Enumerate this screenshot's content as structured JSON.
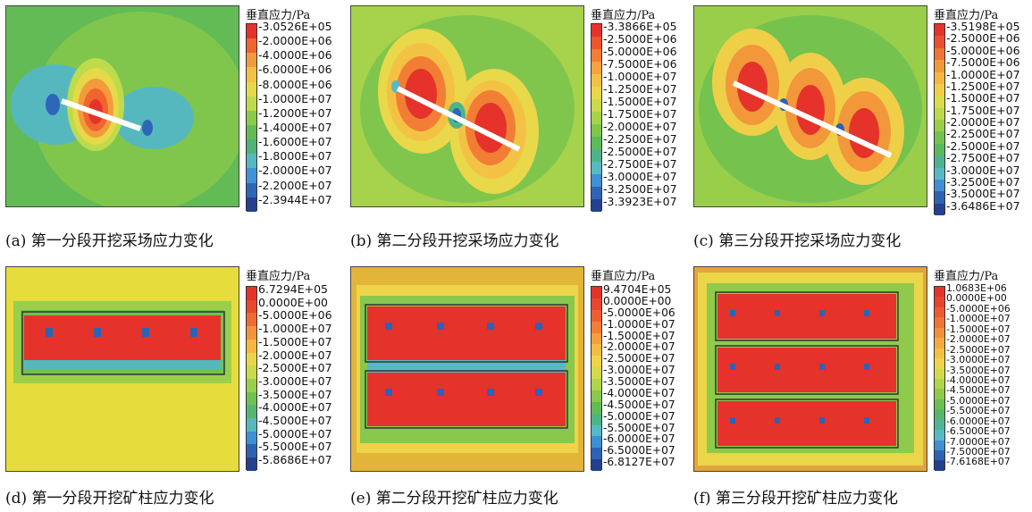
{
  "legend_title": "垂直应力/Pa",
  "panels": [
    {
      "caption": "(a) 第一分段开挖采场应力变化",
      "labels": [
        "-3.0526E+05",
        "-2.0000E+06",
        "-4.0000E+06",
        "-6.0000E+06",
        "-8.0000E+06",
        "-1.0000E+07",
        "-1.2000E+07",
        "-1.4000E+07",
        "-1.6000E+07",
        "-1.8000E+07",
        "-2.0000E+07",
        "-2.2000E+07",
        "-2.3944E+07"
      ],
      "colors": [
        "#e5322b",
        "#f0642f",
        "#f39a3c",
        "#f3c245",
        "#e5d94a",
        "#bddb4b",
        "#8ccb4a",
        "#63bb55",
        "#4fb37a",
        "#56b8bf",
        "#3f93d6",
        "#2e66b8",
        "#24408f"
      ]
    },
    {
      "caption": "(b) 第二分段开挖采场应力变化",
      "labels": [
        "-3.3866E+05",
        "-2.5000E+06",
        "-5.0000E+06",
        "-7.5000E+06",
        "-1.0000E+07",
        "-1.2500E+07",
        "-1.5000E+07",
        "-1.7500E+07",
        "-2.0000E+07",
        "-2.2500E+07",
        "-2.5000E+07",
        "-2.7500E+07",
        "-3.0000E+07",
        "-3.2500E+07",
        "-3.3923E+07"
      ],
      "colors": [
        "#e5322b",
        "#ee5530",
        "#f27e36",
        "#f3a43d",
        "#f3c245",
        "#e9d84a",
        "#cbdb4b",
        "#a7d24b",
        "#80c64d",
        "#5fba59",
        "#4eb38b",
        "#58b9c4",
        "#3f90d4",
        "#2e63b5",
        "#24408f"
      ]
    },
    {
      "caption": "(c) 第三分段开挖采场应力变化",
      "labels": [
        "-3.5198E+05",
        "-2.5000E+06",
        "-5.0000E+06",
        "-7.5000E+06",
        "-1.0000E+07",
        "-1.2500E+07",
        "-1.5000E+07",
        "-1.7500E+07",
        "-2.0000E+07",
        "-2.2500E+07",
        "-2.5000E+07",
        "-2.7500E+07",
        "-3.0000E+07",
        "-3.2500E+07",
        "-3.5000E+07",
        "-3.6486E+07"
      ],
      "colors": [
        "#e5322b",
        "#ec4f2f",
        "#f07434",
        "#f3973b",
        "#f3b742",
        "#f0cf48",
        "#dbdb4b",
        "#bcd84b",
        "#99ce4b",
        "#75c24f",
        "#5ab95f",
        "#4fb391",
        "#58b9c6",
        "#3f8fd3",
        "#2e62b4",
        "#24408f"
      ]
    },
    {
      "caption": "(d) 第一分段开挖矿柱应力变化",
      "labels": [
        "6.7294E+05",
        "0.0000E+00",
        "-5.0000E+06",
        "-1.0000E+07",
        "-1.5000E+07",
        "-2.0000E+07",
        "-2.5000E+07",
        "-3.0000E+07",
        "-3.5000E+07",
        "-4.0000E+07",
        "-4.5000E+07",
        "-5.0000E+07",
        "-5.5000E+07",
        "-5.8686E+07"
      ],
      "colors": [
        "#e5322b",
        "#ea472e",
        "#f06a33",
        "#f3943b",
        "#f3b742",
        "#ecd448",
        "#c9db4b",
        "#9bcf4b",
        "#6fc150",
        "#54b774",
        "#56b8bf",
        "#3f90d4",
        "#2e62b4",
        "#24408f"
      ]
    },
    {
      "caption": "(e) 第二分段开挖矿柱应力变化",
      "labels": [
        "9.4704E+05",
        "0.0000E+00",
        "-5.0000E+06",
        "-1.0000E+07",
        "-1.5000E+07",
        "-2.0000E+07",
        "-2.5000E+07",
        "-3.0000E+07",
        "-3.5000E+07",
        "-4.0000E+07",
        "-4.5000E+07",
        "-5.0000E+07",
        "-5.5000E+07",
        "-6.0000E+07",
        "-6.5000E+07",
        "-6.8127E+07"
      ],
      "colors": [
        "#e5322b",
        "#ea452e",
        "#ee5f31",
        "#f27e36",
        "#f3a03c",
        "#f3bd44",
        "#eed449",
        "#d4db4b",
        "#b0d44b",
        "#88c84c",
        "#63bb55",
        "#4fb485",
        "#58b9c6",
        "#3f8fd3",
        "#2e62b4",
        "#24408f"
      ]
    },
    {
      "caption": "(f) 第三分段开挖矿柱应力变化",
      "labels": [
        "1.0683E+06",
        "0.0000E+00",
        "-5.0000E+06",
        "-1.0000E+07",
        "-1.5000E+07",
        "-2.0000E+07",
        "-2.5000E+07",
        "-3.0000E+07",
        "-3.5000E+07",
        "-4.0000E+07",
        "-4.5000E+07",
        "-5.0000E+07",
        "-5.5000E+07",
        "-6.0000E+07",
        "-6.5000E+07",
        "-7.0000E+07",
        "-7.5000E+07",
        "-7.6168E+07"
      ],
      "colors": [
        "#e5322b",
        "#e9432e",
        "#ed5a30",
        "#f07434",
        "#f3913a",
        "#f3ab3f",
        "#f3c245",
        "#ebd649",
        "#d2db4b",
        "#b2d44b",
        "#8fca4b",
        "#6dbf51",
        "#56b76c",
        "#4fb498",
        "#58b9c6",
        "#3f8fd3",
        "#2e62b4",
        "#24408f"
      ]
    }
  ]
}
